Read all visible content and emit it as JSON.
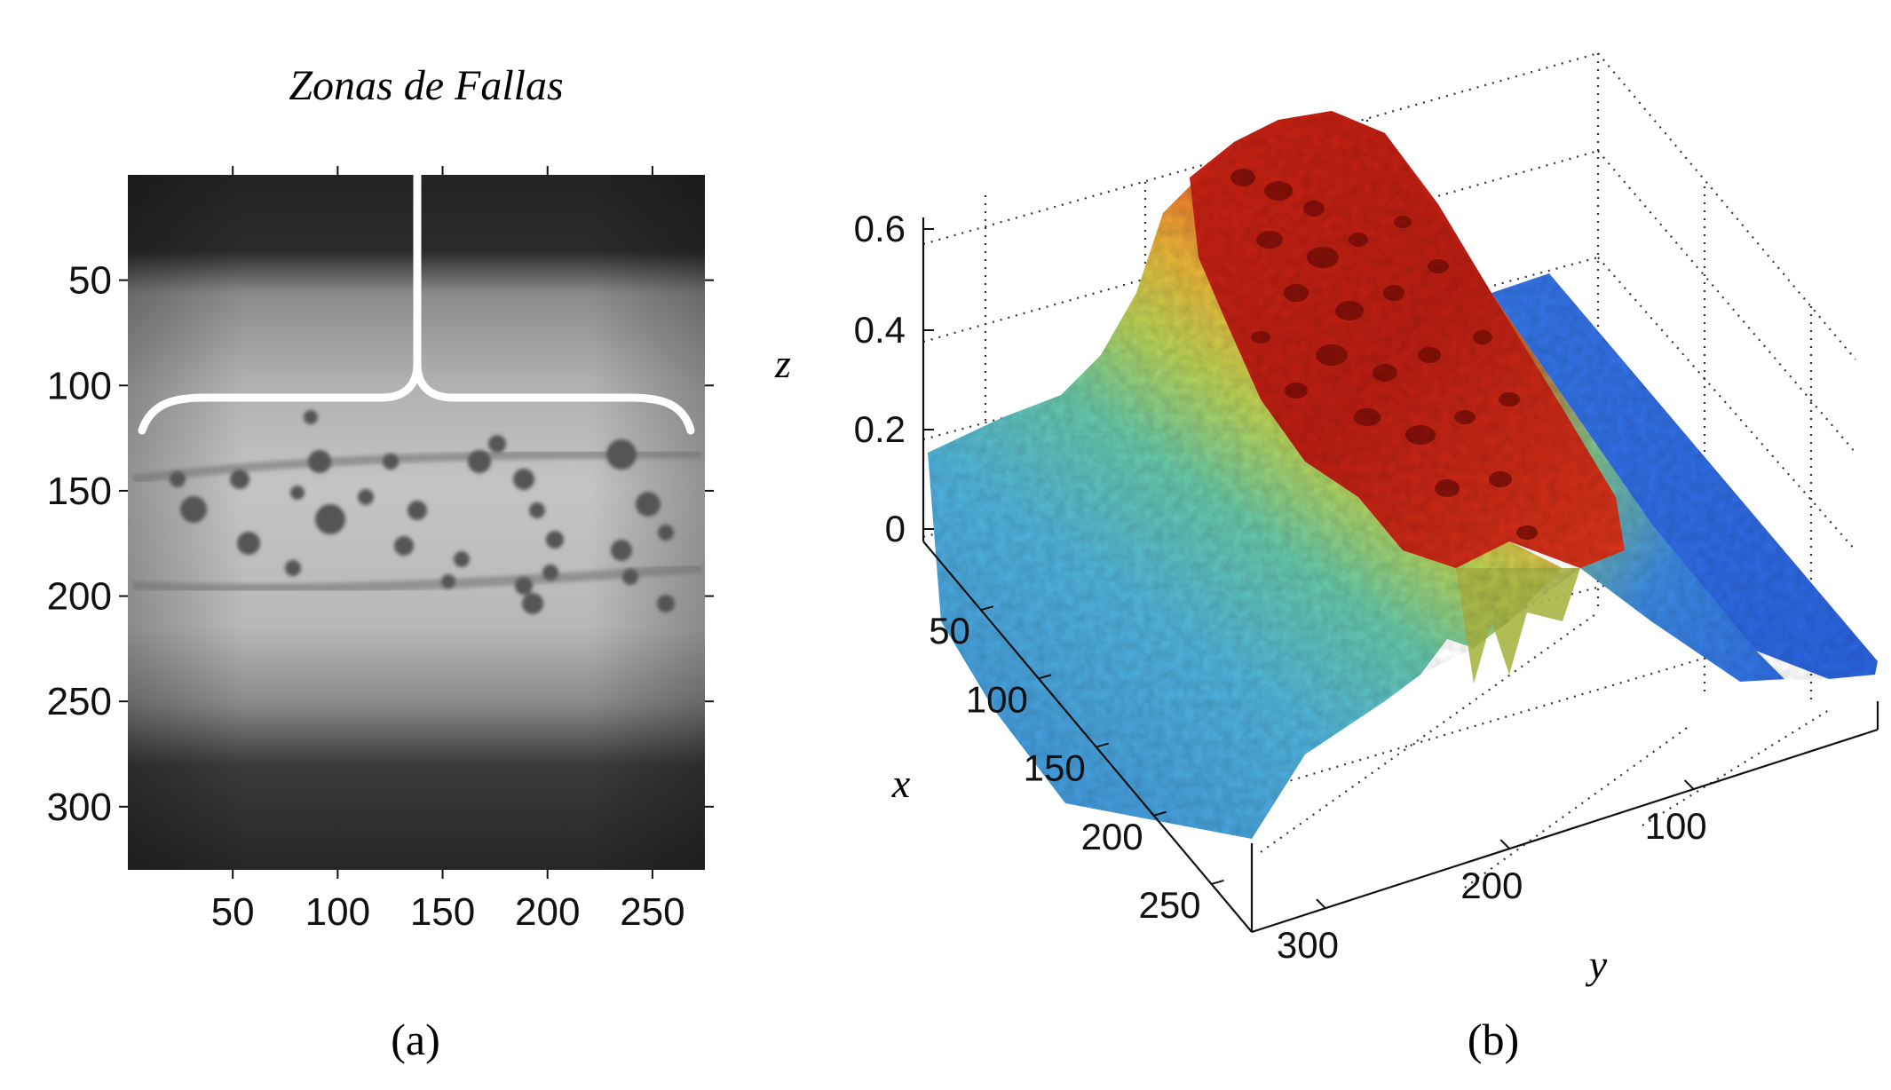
{
  "annotation": "Zonas de Fallas",
  "panel_a": {
    "caption": "(a)",
    "x_ticks": [
      "50",
      "100",
      "150",
      "200",
      "250"
    ],
    "y_ticks": [
      "50",
      "100",
      "150",
      "200",
      "250",
      "300"
    ]
  },
  "panel_b": {
    "caption": "(b)",
    "z_label": "z",
    "x_label": "x",
    "y_label": "y",
    "z_ticks": [
      "0.6",
      "0.4",
      "0.2",
      "0"
    ],
    "x_ticks": [
      "50",
      "100",
      "150",
      "200",
      "250"
    ],
    "y_ticks": [
      "300",
      "200",
      "100"
    ]
  },
  "colors": {
    "image_dark": "#262626",
    "image_light": "#b9b9b9",
    "surface_low": "#2f6fe0",
    "surface_mid": "#8ad07a",
    "surface_high": "#cc2a12"
  }
}
